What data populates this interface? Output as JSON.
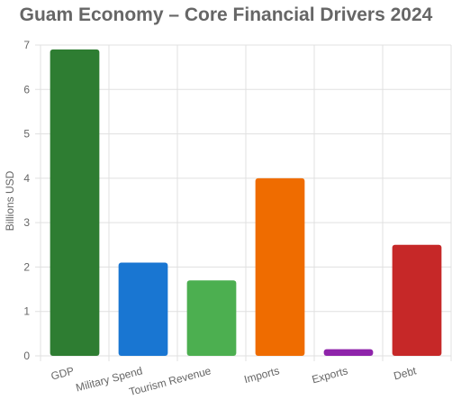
{
  "chart_data": {
    "type": "bar",
    "title": "Guam Economy – Core Financial Drivers 2024",
    "xlabel": "",
    "ylabel": "Billions USD",
    "categories": [
      "GDP",
      "Military Spend",
      "Tourism Revenue",
      "Imports",
      "Exports",
      "Debt"
    ],
    "values": [
      6.9,
      2.1,
      1.7,
      4.0,
      0.15,
      2.5
    ],
    "colors": [
      "#2e7d32",
      "#1976d2",
      "#4caf50",
      "#ef6c00",
      "#8e24aa",
      "#c62828"
    ],
    "ylim": [
      0,
      7
    ],
    "yticks": [
      "0",
      "1",
      "2",
      "3",
      "4",
      "5",
      "6",
      "7"
    ],
    "grid": true,
    "legend": "none"
  }
}
